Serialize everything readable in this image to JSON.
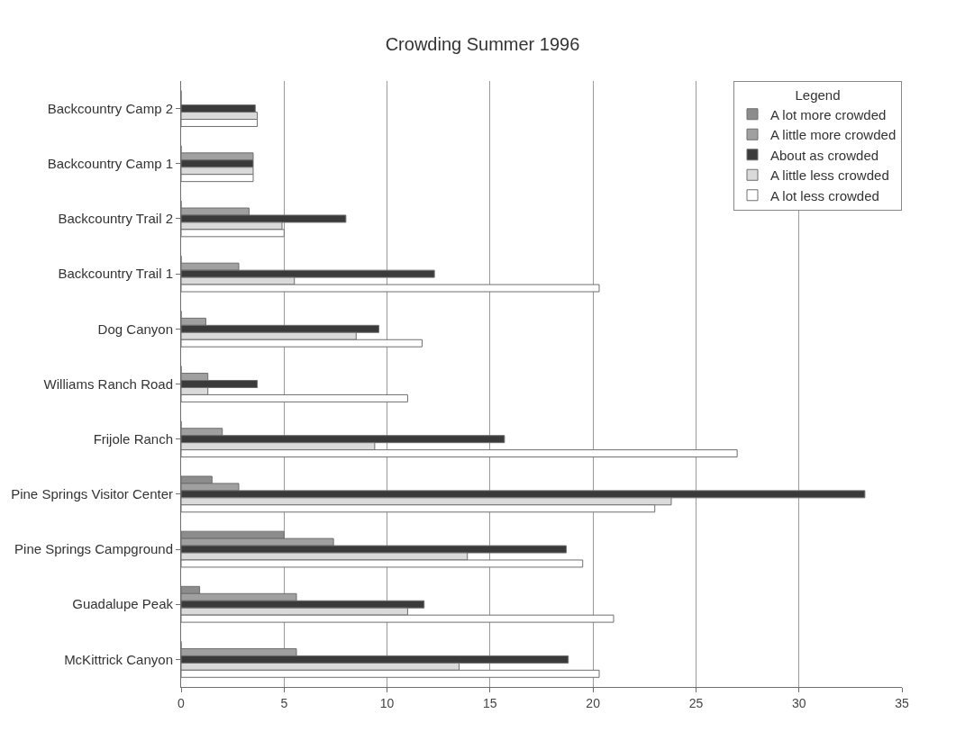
{
  "chart_data": {
    "type": "bar",
    "orientation": "horizontal",
    "title": "Crowding Summer 1996",
    "categories": [
      "Backcountry Camp 2",
      "Backcountry Camp 1",
      "Backcountry Trail 2",
      "Backcountry Trail 1",
      "Dog Canyon",
      "Williams Ranch Road",
      "Frijole Ranch",
      "Pine Springs Visitor Center",
      "Pine Springs Campground",
      "Guadalupe Peak",
      "McKittrick Canyon"
    ],
    "series": [
      {
        "name": "A lot more crowded",
        "color": "#8c8c8c",
        "values": [
          0,
          0,
          0,
          0,
          0,
          0,
          0,
          1.5,
          5,
          0.9,
          0
        ]
      },
      {
        "name": "A little more crowded",
        "color": "#a0a0a0",
        "values": [
          0,
          3.5,
          3.3,
          2.8,
          1.2,
          1.3,
          2.0,
          2.8,
          7.4,
          5.6,
          5.6
        ]
      },
      {
        "name": "About as crowded",
        "color": "#3a3a3a",
        "values": [
          3.6,
          3.5,
          8.0,
          12.3,
          9.6,
          3.7,
          15.7,
          33.2,
          18.7,
          11.8,
          18.8
        ]
      },
      {
        "name": "A little less crowded",
        "color": "#dadada",
        "values": [
          3.7,
          3.5,
          4.9,
          5.5,
          8.5,
          1.3,
          9.4,
          23.8,
          13.9,
          11.0,
          13.5
        ]
      },
      {
        "name": "A lot less crowded",
        "color": "#ffffff",
        "values": [
          3.7,
          3.5,
          5.0,
          20.3,
          11.7,
          11.0,
          27.0,
          23.0,
          19.5,
          21.0,
          20.3
        ]
      }
    ],
    "xlim": [
      0,
      35
    ],
    "xticks": [
      0,
      5,
      10,
      15,
      20,
      25,
      30,
      35
    ],
    "grid": "x",
    "legend": "top right",
    "legend_title": "Legend"
  }
}
